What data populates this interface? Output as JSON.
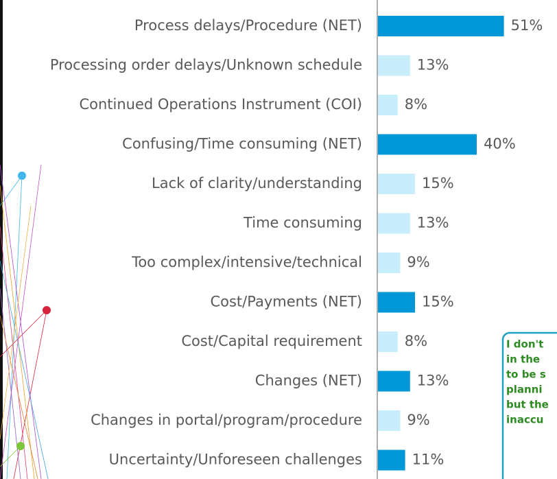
{
  "chart_data": {
    "type": "bar",
    "orientation": "horizontal",
    "categories": [
      "Process delays/Procedure (NET)",
      "Processing order delays/Unknown schedule",
      "Continued Operations Instrument (COI)",
      "Confusing/Time consuming (NET)",
      "Lack of clarity/understanding",
      "Time consuming",
      "Too complex/intensive/technical",
      "Cost/Payments (NET)",
      "Cost/Capital requirement",
      "Changes (NET)",
      "Changes in portal/program/procedure",
      "Uncertainty/Unforeseen challenges"
    ],
    "values": [
      51,
      13,
      8,
      40,
      15,
      13,
      9,
      15,
      8,
      13,
      9,
      11
    ],
    "value_labels": [
      "51%",
      "13%",
      "8%",
      "40%",
      "15%",
      "13%",
      "9%",
      "15%",
      "8%",
      "13%",
      "9%",
      "11%"
    ],
    "colors": [
      "#0097d7",
      "#c8eefb",
      "#c8eefb",
      "#0097d7",
      "#c8eefb",
      "#c8eefb",
      "#c8eefb",
      "#0097d7",
      "#c8eefb",
      "#0097d7",
      "#c8eefb",
      "#0097d7"
    ],
    "annotation_lines": [
      "I don't",
      "in the",
      "to be s",
      "planni",
      "but the",
      "inaccu"
    ]
  }
}
